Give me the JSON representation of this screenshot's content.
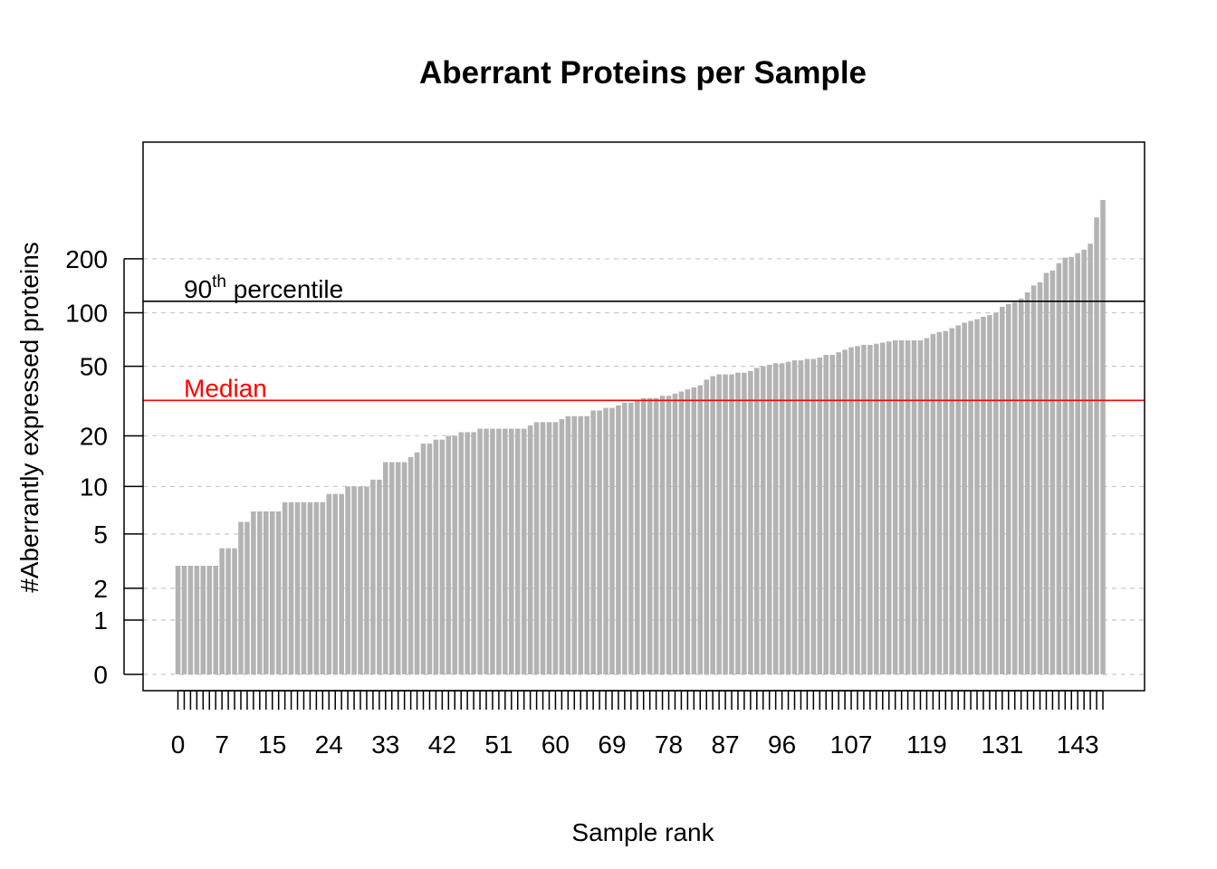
{
  "chart_data": {
    "type": "bar",
    "title": "Aberrant Proteins per Sample",
    "xlabel": "Sample rank",
    "ylabel": "#Aberrantly expressed proteins",
    "y_scale": "log1p",
    "y_ticks": [
      0,
      1,
      2,
      5,
      10,
      20,
      50,
      100,
      200
    ],
    "y_tick_labels": [
      "0",
      "1",
      "2",
      "5",
      "10",
      "20",
      "50",
      "100",
      "200"
    ],
    "x_tick_labels": [
      "0",
      "7",
      "15",
      "24",
      "33",
      "42",
      "51",
      "60",
      "69",
      "78",
      "87",
      "96",
      "107",
      "119",
      "131",
      "143"
    ],
    "grid": true,
    "bar_color": "#b3b3b3",
    "values": [
      3,
      3,
      3,
      3,
      3,
      3,
      3,
      4,
      4,
      4,
      6,
      6,
      7,
      7,
      7,
      7,
      7,
      8,
      8,
      8,
      8,
      8,
      8,
      8,
      9,
      9,
      9,
      10,
      10,
      10,
      10,
      11,
      11,
      14,
      14,
      14,
      14,
      15,
      16,
      18,
      18,
      19,
      19,
      20,
      20,
      21,
      21,
      21,
      22,
      22,
      22,
      22,
      22,
      22,
      22,
      22,
      23,
      24,
      24,
      24,
      24,
      25,
      26,
      26,
      26,
      26,
      28,
      28,
      29,
      29,
      30,
      31,
      31,
      32,
      33,
      33,
      33,
      34,
      34,
      35,
      36,
      37,
      38,
      39,
      42,
      44,
      45,
      45,
      45,
      46,
      46,
      47,
      49,
      50,
      51,
      52,
      52,
      53,
      54,
      54,
      55,
      55,
      56,
      58,
      58,
      60,
      62,
      64,
      65,
      66,
      66,
      67,
      68,
      69,
      70,
      70,
      70,
      70,
      70,
      72,
      76,
      78,
      79,
      82,
      85,
      88,
      90,
      92,
      95,
      97,
      100,
      108,
      112,
      114,
      120,
      130,
      142,
      148,
      167,
      172,
      189,
      203,
      205,
      215,
      225,
      243,
      340,
      425
    ],
    "reference_lines": [
      {
        "label": "90",
        "label_sup": "th",
        "label_rest": " percentile",
        "value": 116,
        "color": "#000000"
      },
      {
        "label": "Median",
        "value": 32,
        "color": "#ff0000"
      }
    ]
  }
}
